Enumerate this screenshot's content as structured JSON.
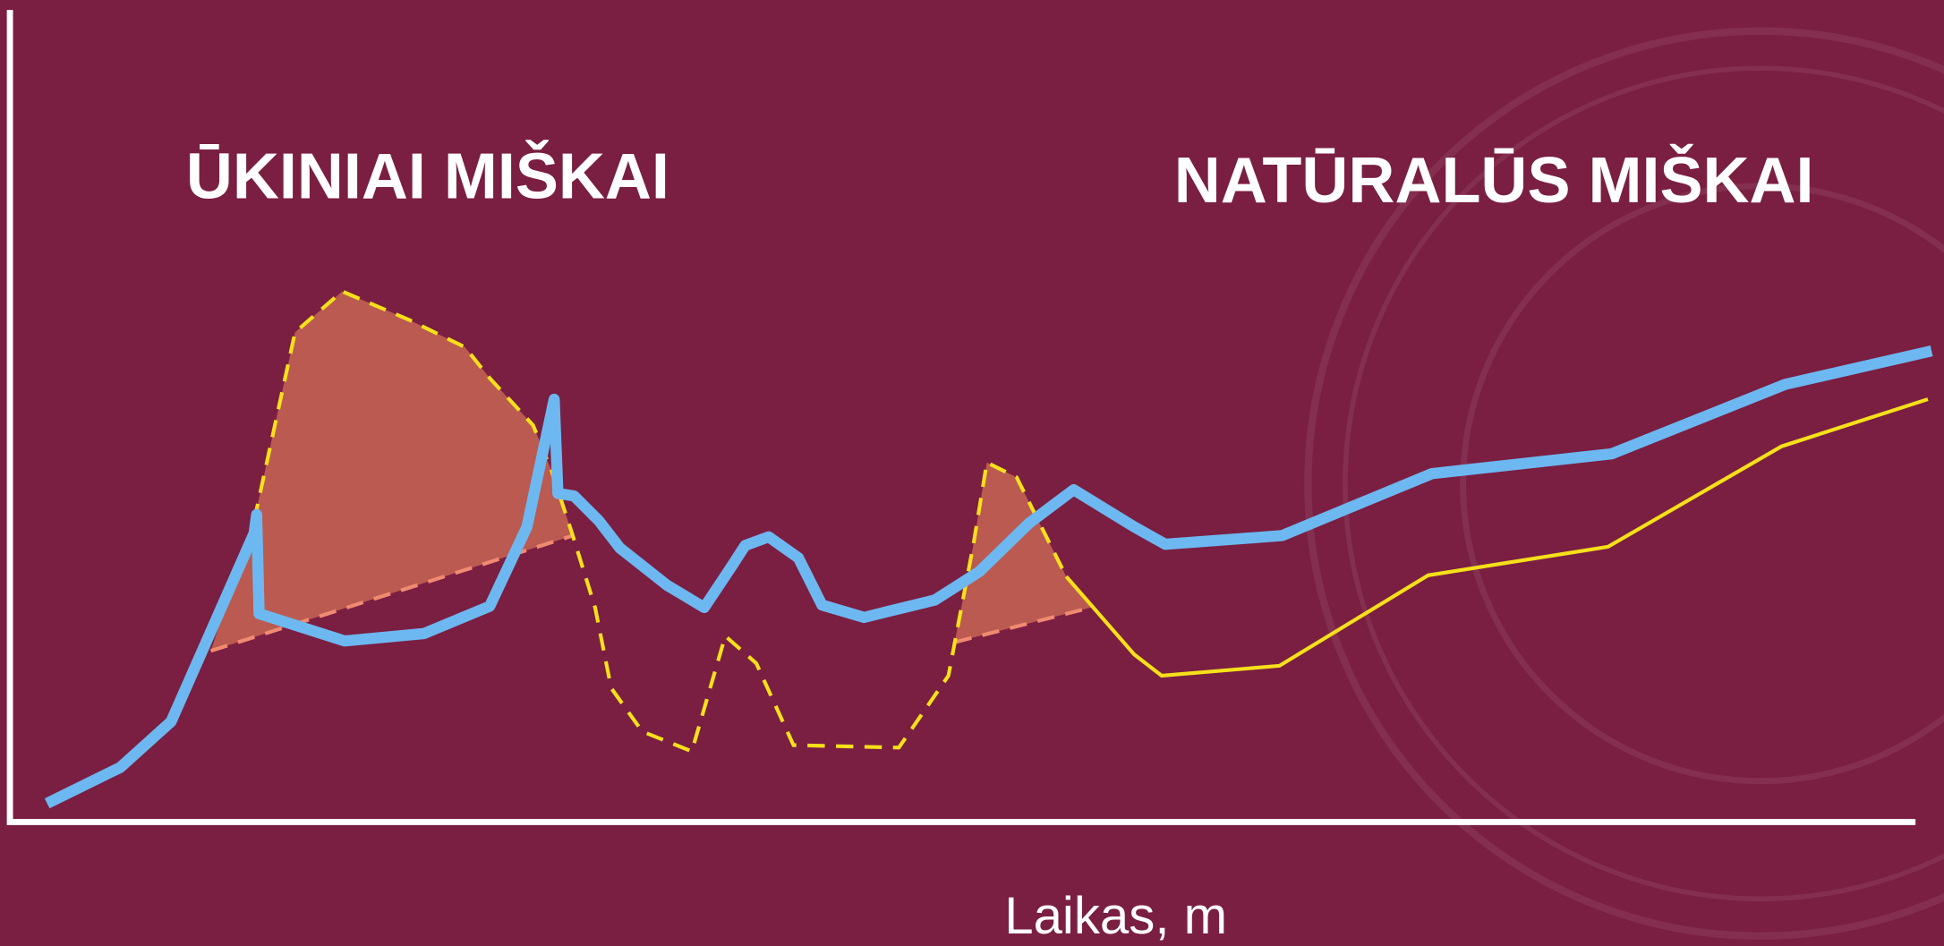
{
  "labels": {
    "left_title": "ŪKINIAI MIŠKAI",
    "right_title": "NATŪRALŪS MIŠKAI",
    "x_axis": "Laikas, m"
  }
}
